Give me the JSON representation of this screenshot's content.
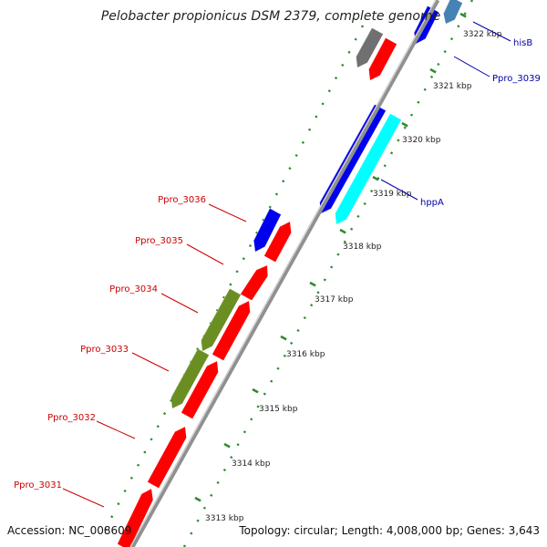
{
  "title": "Pelobacter propionicus DSM 2379, complete genome",
  "accession": "Accession: NC_008609",
  "topology": "Topology: circular; Length: 4,008,000 bp; Genes: 3,643",
  "colors": {
    "backbone": "#888888",
    "dots": "#2e8b2e",
    "reverse_label": "#cc0000",
    "forward_label": "#0000aa",
    "red": "#ff0000",
    "blue": "#0000ee",
    "cyan": "#00ffff",
    "olive": "#6b8e23",
    "gray": "#707070",
    "steel": "#4682b4"
  },
  "ticks": [
    {
      "label": "3322 kbp"
    },
    {
      "label": "3321 kbp"
    },
    {
      "label": "3320 kbp"
    },
    {
      "label": "3319 kbp"
    },
    {
      "label": "3318 kbp"
    },
    {
      "label": "3317 kbp"
    },
    {
      "label": "3316 kbp"
    },
    {
      "label": "3315 kbp"
    },
    {
      "label": "3314 kbp"
    },
    {
      "label": "3313 kbp"
    }
  ],
  "gene_labels": [
    {
      "text": "hisB",
      "strand": "forward"
    },
    {
      "text": "Ppro_3039",
      "strand": "forward"
    },
    {
      "text": "hppA",
      "strand": "forward"
    },
    {
      "text": "Ppro_3036",
      "strand": "reverse"
    },
    {
      "text": "Ppro_3035",
      "strand": "reverse"
    },
    {
      "text": "Ppro_3034",
      "strand": "reverse"
    },
    {
      "text": "Ppro_3033",
      "strand": "reverse"
    },
    {
      "text": "Ppro_3032",
      "strand": "reverse"
    },
    {
      "text": "Ppro_3031",
      "strand": "reverse"
    }
  ]
}
